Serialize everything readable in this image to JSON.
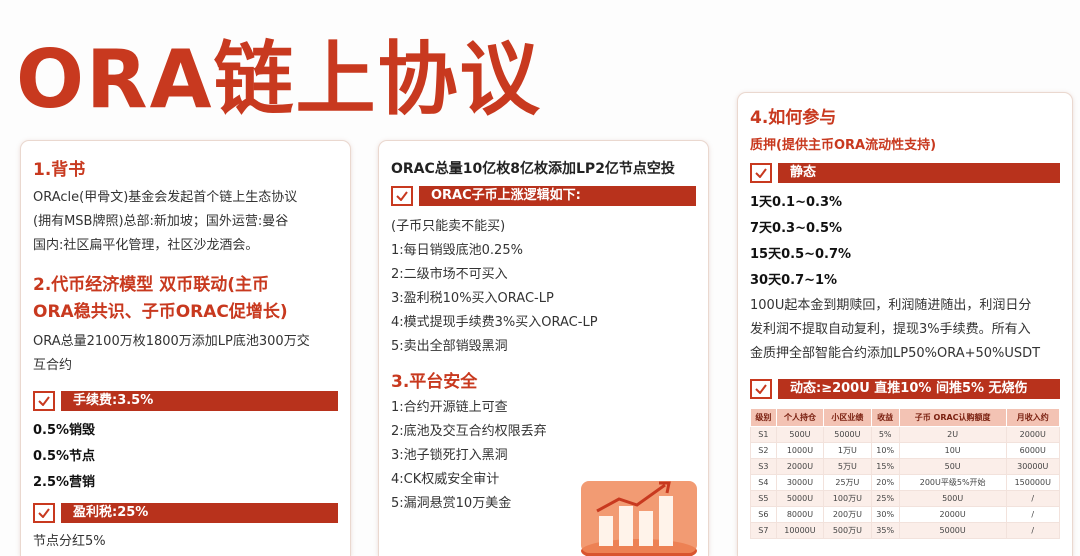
{
  "title": "ORA链上协议",
  "card1": {
    "heading1": "1.背书",
    "background": [
      "ORAcle(甲骨文)基金会发起首个链上生态协议",
      "(拥有MSB牌照)总部:新加坡；国外运营:曼谷",
      "国内:社区扁平化管理，社区沙龙酒会。"
    ],
    "heading2": [
      "2.代币经济模型  双币联动(主币",
      "ORA稳共识、子币ORAC促增长)"
    ],
    "supply": [
      "ORA总量2100万枚1800万添加LP底池300万交",
      "互合约"
    ],
    "fee_banner": "手续费:3.5%",
    "fee_items": [
      "0.5%销毁",
      "0.5%节点",
      "2.5%营销"
    ],
    "tax_banner": "盈利税:25%",
    "tax_items": [
      "节点分红5%"
    ]
  },
  "card2": {
    "heading": "ORAC总量10亿枚8亿枚添加LP2亿节点空投",
    "banner": "ORAC子币上涨逻辑如下:",
    "note": "(子币只能卖不能买)",
    "logic": [
      "1:每日销毁底池0.25%",
      "2:二级市场不可买入",
      "3:盈利税10%买入ORAC-LP",
      "4:模式提现手续费3%买入ORAC-LP",
      "5:卖出全部销毁黑洞"
    ],
    "security_heading": "3.平台安全",
    "security": [
      "1:合约开源链上可查",
      "2:底池及交互合约权限丢弃",
      "3:池子锁死打入黑洞",
      "4:CK权威安全审计",
      "5:漏洞悬赏10万美金"
    ]
  },
  "card3": {
    "heading": "4.如何参与",
    "subheading": "质押(提供主币ORA流动性支持)",
    "static_banner": "静态",
    "static_rates": [
      "1天0.1~0.3%",
      "7天0.3~0.5%",
      "15天0.5~0.7%",
      "30天0.7~1%"
    ],
    "rules": [
      "100U起本金到期赎回，利润随进随出，利润日分",
      "发利润不提取自动复利，提现3%手续费。所有入",
      "金质押全部智能合约添加LP50%ORA+50%USDT"
    ],
    "dynamic_banner": "动态:≥200U  直推10%  间推5%  无烧伤",
    "table": {
      "header": [
        "级别",
        "个人持仓",
        "小区业绩",
        "收益",
        "子币 ORAC认购额度",
        "月收入约"
      ],
      "rows": [
        [
          "S1",
          "500U",
          "5000U",
          "5%",
          "2U",
          "2000U"
        ],
        [
          "S2",
          "1000U",
          "1万U",
          "10%",
          "10U",
          "6000U"
        ],
        [
          "S3",
          "2000U",
          "5万U",
          "15%",
          "50U",
          "30000U"
        ],
        [
          "S4",
          "3000U",
          "25万U",
          "20%",
          "200U平级5%开始",
          "150000U"
        ],
        [
          "S5",
          "5000U",
          "100万U",
          "25%",
          "500U",
          "/"
        ],
        [
          "S6",
          "8000U",
          "200万U",
          "30%",
          "2000U",
          "/"
        ],
        [
          "S7",
          "10000U",
          "500万U",
          "35%",
          "5000U",
          "/"
        ]
      ]
    }
  }
}
